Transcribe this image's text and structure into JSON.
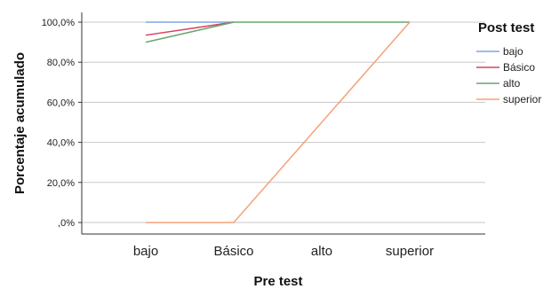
{
  "chart_data": {
    "type": "line",
    "xlabel": "Pre test",
    "ylabel": "Porcentaje acumulado",
    "categories": [
      "bajo",
      "Básico",
      "alto",
      "superior"
    ],
    "ylim": [
      0,
      100
    ],
    "yticks": [
      0,
      20,
      40,
      60,
      80,
      100
    ],
    "ytick_labels": [
      ",0%",
      "20,0%",
      "40,0%",
      "60,0%",
      "80,0%",
      "100,0%"
    ],
    "grid": "horizontal",
    "legend": {
      "title": "Post test",
      "placement": "right"
    },
    "series": [
      {
        "name": "bajo",
        "color": "#7ea5e0",
        "values": [
          100,
          100,
          null,
          null
        ]
      },
      {
        "name": "Básico",
        "color": "#d9425f",
        "values": [
          93.5,
          100,
          null,
          null
        ]
      },
      {
        "name": "alto",
        "color": "#6aa66a",
        "values": [
          90,
          100,
          100,
          100
        ]
      },
      {
        "name": "superior",
        "color": "#f5a27a",
        "values": [
          0,
          0,
          null,
          100
        ]
      }
    ]
  }
}
